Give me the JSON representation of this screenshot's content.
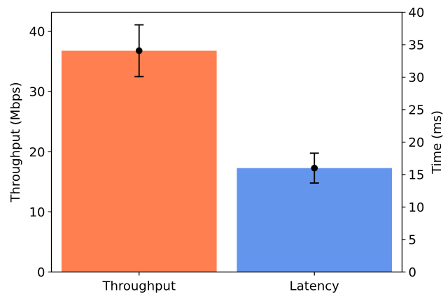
{
  "chart_data": {
    "type": "bar",
    "categories": [
      "Throughput",
      "Latency"
    ],
    "series": [
      {
        "axis": "left",
        "values": [
          36.8,
          null
        ],
        "errors": [
          4.3,
          null
        ],
        "color": "#ff7f50"
      },
      {
        "axis": "right",
        "values": [
          null,
          16.0
        ],
        "errors": [
          null,
          2.3
        ],
        "color": "#6495ed"
      }
    ],
    "y_left": {
      "label": "Throughput (Mbps)",
      "ylim": [
        0,
        43.2
      ],
      "ticks": [
        0,
        10,
        20,
        30,
        40
      ]
    },
    "y_right": {
      "label": "Time (ms)",
      "ylim": [
        0,
        40
      ],
      "ticks": [
        0,
        5,
        10,
        15,
        20,
        25,
        30,
        35,
        40
      ]
    },
    "xlabel": "",
    "title": "",
    "grid": false,
    "legend": "none",
    "marker_color": "#000000"
  }
}
